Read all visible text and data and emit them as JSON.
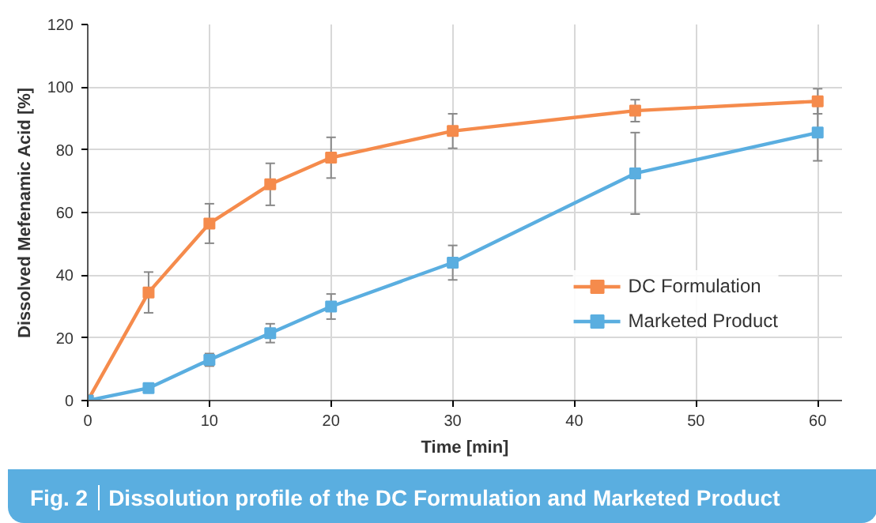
{
  "chart_data": {
    "type": "line",
    "xlabel": "Time [min]",
    "ylabel": "Dissolved Mefenamic Acid [%]",
    "annotations": [
      "Fig. 2",
      "Dissolution profile of the DC Formulation and Marketed Product"
    ],
    "x": [
      0,
      5,
      10,
      15,
      20,
      30,
      45,
      60
    ],
    "series": [
      {
        "name": "DC Formulation",
        "color": "#f58b4c",
        "values": [
          0,
          34.5,
          56.5,
          69,
          77.5,
          86,
          92.5,
          95.5
        ],
        "errors": [
          null,
          6.5,
          6.3,
          6.7,
          6.5,
          5.5,
          3.5,
          4
        ]
      },
      {
        "name": "Marketed Product",
        "color": "#5aaee0",
        "values": [
          0,
          4,
          13,
          21.5,
          30,
          44,
          72.5,
          85.5
        ],
        "errors": [
          null,
          null,
          2,
          3,
          4,
          5.5,
          13,
          9
        ]
      }
    ],
    "xlim": [
      0,
      62
    ],
    "xticks": [
      0,
      10,
      20,
      30,
      40,
      50,
      60
    ],
    "ylim": [
      0,
      120
    ],
    "yticks": [
      0,
      20,
      40,
      60,
      80,
      100,
      120
    ],
    "grid": true,
    "legend": "bottom right",
    "marker": "square",
    "line_style": "solid"
  }
}
